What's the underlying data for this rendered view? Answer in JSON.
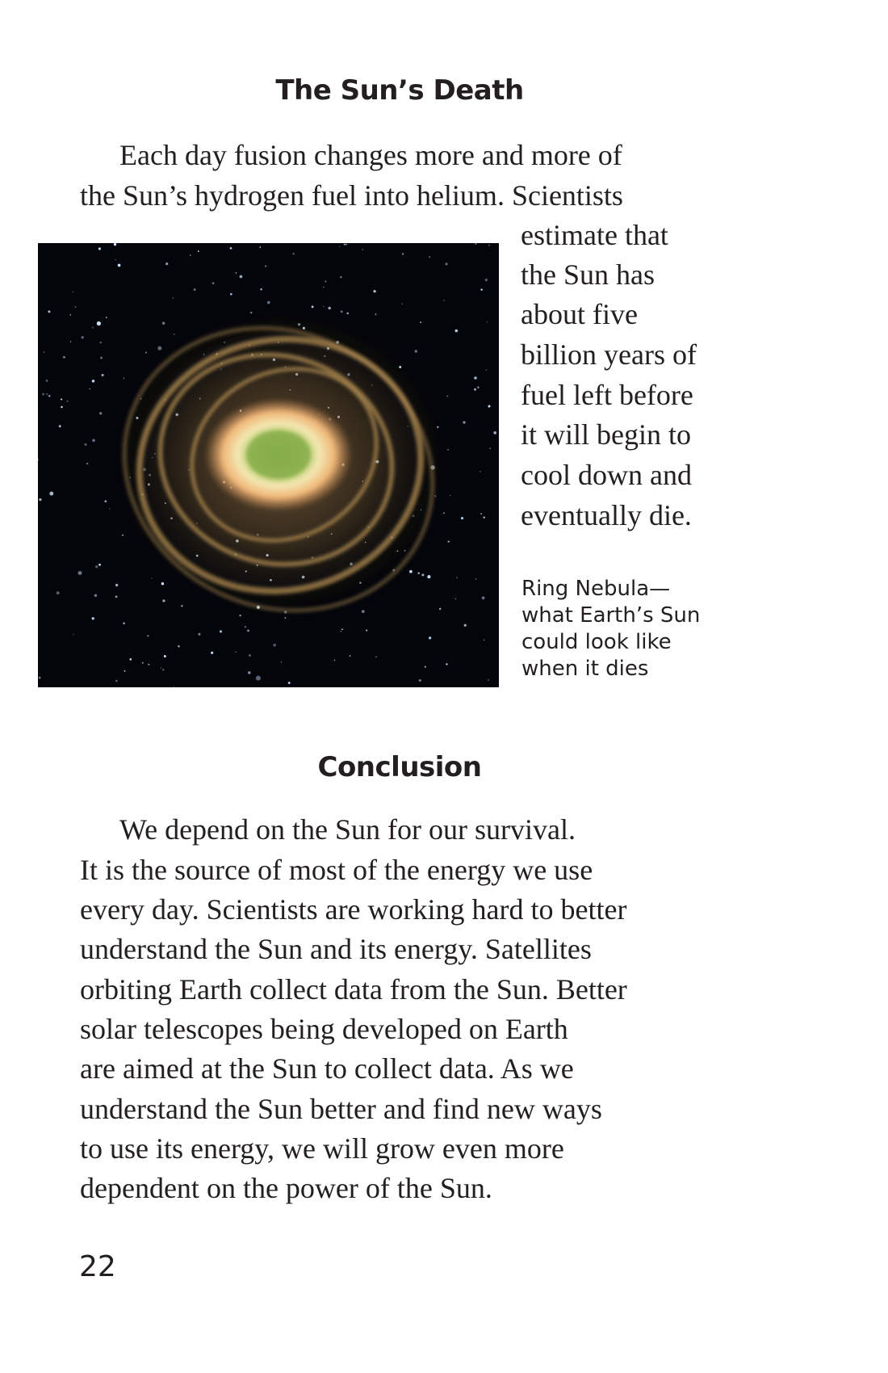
{
  "section1": {
    "heading": "The Sun’s Death",
    "lines": [
      "Each day fusion changes more and more of",
      "the Sun’s hydrogen fuel into helium. Scientists",
      "estimate that",
      "the Sun has",
      "about five",
      "billion years of",
      "fuel left before",
      "it will begin to",
      "cool down and",
      "eventually die."
    ]
  },
  "figure": {
    "caption_lines": [
      "Ring Nebula—",
      "what Earth’s Sun",
      "could look like",
      "when it dies"
    ]
  },
  "section2": {
    "heading": "Conclusion",
    "lines": [
      "We depend on the Sun for our survival.",
      "It is the source of most of the energy we use",
      "every day. Scientists are working hard to better",
      "understand the Sun and its energy. Satellites",
      "orbiting Earth collect data from the Sun. Better",
      "solar telescopes being developed on Earth",
      "are aimed at the Sun to collect data. As we",
      "understand the Sun better and find new ways",
      "to use its energy, we will grow even more",
      "dependent on the power of the Sun."
    ]
  },
  "page_number": "22"
}
